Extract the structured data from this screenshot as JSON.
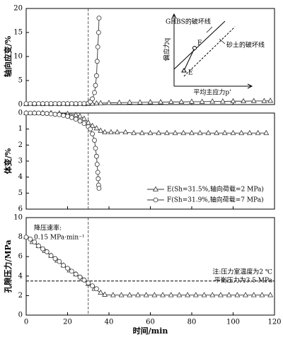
{
  "chart_data": [
    {
      "type": "line",
      "ylabel": "轴向应变/%",
      "xlim": [
        0,
        120
      ],
      "ylim": [
        0,
        20
      ],
      "yticks": [
        0,
        5,
        10,
        15,
        20
      ],
      "vline": 30,
      "series": [
        {
          "marker": "triangle",
          "color": "#333333",
          "x": [
            0,
            4,
            8,
            12,
            16,
            20,
            24,
            28,
            30,
            32,
            34,
            36,
            40,
            45,
            50,
            55,
            60,
            65,
            70,
            75,
            80,
            85,
            90,
            95,
            100,
            105,
            110,
            115,
            118
          ],
          "values": [
            0.1,
            0.1,
            0.1,
            0.1,
            0.1,
            0.1,
            0.1,
            0.1,
            0.15,
            0.2,
            0.25,
            0.3,
            0.35,
            0.4,
            0.45,
            0.45,
            0.5,
            0.5,
            0.55,
            0.55,
            0.6,
            0.6,
            0.65,
            0.65,
            0.7,
            0.7,
            0.75,
            0.75,
            0.8
          ]
        },
        {
          "marker": "circle",
          "color": "#333333",
          "x": [
            0,
            2,
            4,
            6,
            8,
            10,
            12,
            14,
            16,
            18,
            20,
            22,
            24,
            26,
            28,
            30,
            31,
            32,
            33,
            33.5,
            34,
            34.3,
            34.6,
            35,
            35.2
          ],
          "values": [
            0.2,
            0.2,
            0.2,
            0.2,
            0.2,
            0.2,
            0.2,
            0.2,
            0.2,
            0.2,
            0.2,
            0.2,
            0.2,
            0.2,
            0.2,
            0.3,
            0.6,
            1.2,
            2.5,
            4,
            6,
            9,
            12,
            15,
            18
          ]
        }
      ],
      "inset": {
        "ghbs_line": "GHBS的破坏线",
        "sand_line": "砂土的破坏线",
        "ylabel": "偏应力q",
        "xlabel": "平均主应力p'",
        "point_e": "E",
        "point_f": "F"
      }
    },
    {
      "type": "line",
      "ylabel": "体变/%",
      "xlim": [
        0,
        120
      ],
      "ylim": [
        0,
        6
      ],
      "y_inverted": true,
      "yticks": [
        0,
        1,
        2,
        3,
        4,
        5,
        6
      ],
      "vline": 30,
      "series": [
        {
          "name": "E(Sh=31.5%,轴向荷载=2 MPa)",
          "marker": "triangle",
          "color": "#333333",
          "x": [
            0,
            4,
            8,
            12,
            16,
            20,
            24,
            26,
            28,
            30,
            32,
            34,
            36,
            38,
            41,
            44,
            48,
            52,
            56,
            60,
            64,
            68,
            72,
            76,
            80,
            84,
            88,
            92,
            96,
            100,
            104,
            108,
            112,
            116
          ],
          "values": [
            0,
            0,
            0,
            0,
            0.02,
            0.05,
            0.12,
            0.2,
            0.35,
            0.6,
            0.8,
            0.95,
            1.1,
            1.2,
            1.2,
            1.2,
            1.2,
            1.25,
            1.25,
            1.25,
            1.25,
            1.25,
            1.25,
            1.25,
            1.25,
            1.25,
            1.25,
            1.25,
            1.25,
            1.25,
            1.25,
            1.25,
            1.25,
            1.25
          ]
        },
        {
          "name": "F(Sh=31.9%,轴向荷载=7 MPa)",
          "marker": "circle",
          "color": "#333333",
          "x": [
            0,
            2,
            4,
            6,
            8,
            10,
            12,
            14,
            16,
            18,
            20,
            22,
            24,
            26,
            28,
            30,
            31,
            32,
            33,
            33.5,
            34,
            34.3,
            34.6,
            34.8,
            35,
            35.2
          ],
          "values": [
            0,
            0,
            0,
            0,
            0.02,
            0.03,
            0.05,
            0.08,
            0.1,
            0.15,
            0.2,
            0.28,
            0.38,
            0.5,
            0.65,
            0.85,
            1.0,
            1.3,
            1.7,
            2.2,
            2.7,
            3.2,
            3.7,
            4.1,
            4.5,
            4.7
          ]
        }
      ]
    },
    {
      "type": "line",
      "ylabel": "孔隙压力/MPa",
      "xlabel": "时间/min",
      "xlim": [
        0,
        120
      ],
      "xticks": [
        0,
        20,
        40,
        60,
        80,
        100,
        120
      ],
      "ylim": [
        0,
        10
      ],
      "yticks": [
        0,
        2,
        4,
        6,
        8,
        10
      ],
      "vline": 30,
      "reference_line": 3.5,
      "annotations": [
        "降压速率:",
        "0.15 MPa·min⁻¹",
        "注:压力室温度为2 ℃",
        "平衡压力为3.5 MPa"
      ],
      "series": [
        {
          "marker": "triangle",
          "color": "#333333",
          "x": [
            0,
            3,
            6,
            9,
            12,
            15,
            18,
            21,
            24,
            27,
            30,
            33,
            36,
            38,
            42,
            46,
            50,
            54,
            58,
            62,
            66,
            70,
            74,
            78,
            82,
            86,
            90,
            94,
            98,
            102,
            106,
            110,
            114,
            118
          ],
          "values": [
            8,
            7.5,
            7.1,
            6.6,
            6.1,
            5.6,
            5.1,
            4.6,
            4.2,
            3.7,
            3.2,
            2.7,
            2.3,
            2.1,
            2.05,
            2.05,
            2.05,
            2.05,
            2.05,
            2.05,
            2.05,
            2.05,
            2.05,
            2.05,
            2.05,
            2.05,
            2.05,
            2.05,
            2.05,
            2.05,
            2.05,
            2.05,
            2.05,
            2.05
          ]
        },
        {
          "marker": "circle",
          "color": "#333333",
          "x": [
            0,
            2,
            4,
            6,
            8,
            10,
            12,
            14,
            16,
            18,
            20,
            22,
            24,
            26,
            28,
            30,
            32,
            34
          ],
          "values": [
            8,
            7.8,
            7.5,
            7.1,
            6.8,
            6.5,
            6.1,
            5.8,
            5.5,
            5.1,
            4.8,
            4.5,
            4.2,
            3.9,
            3.6,
            3.3,
            3.0,
            2.7
          ]
        }
      ]
    }
  ]
}
